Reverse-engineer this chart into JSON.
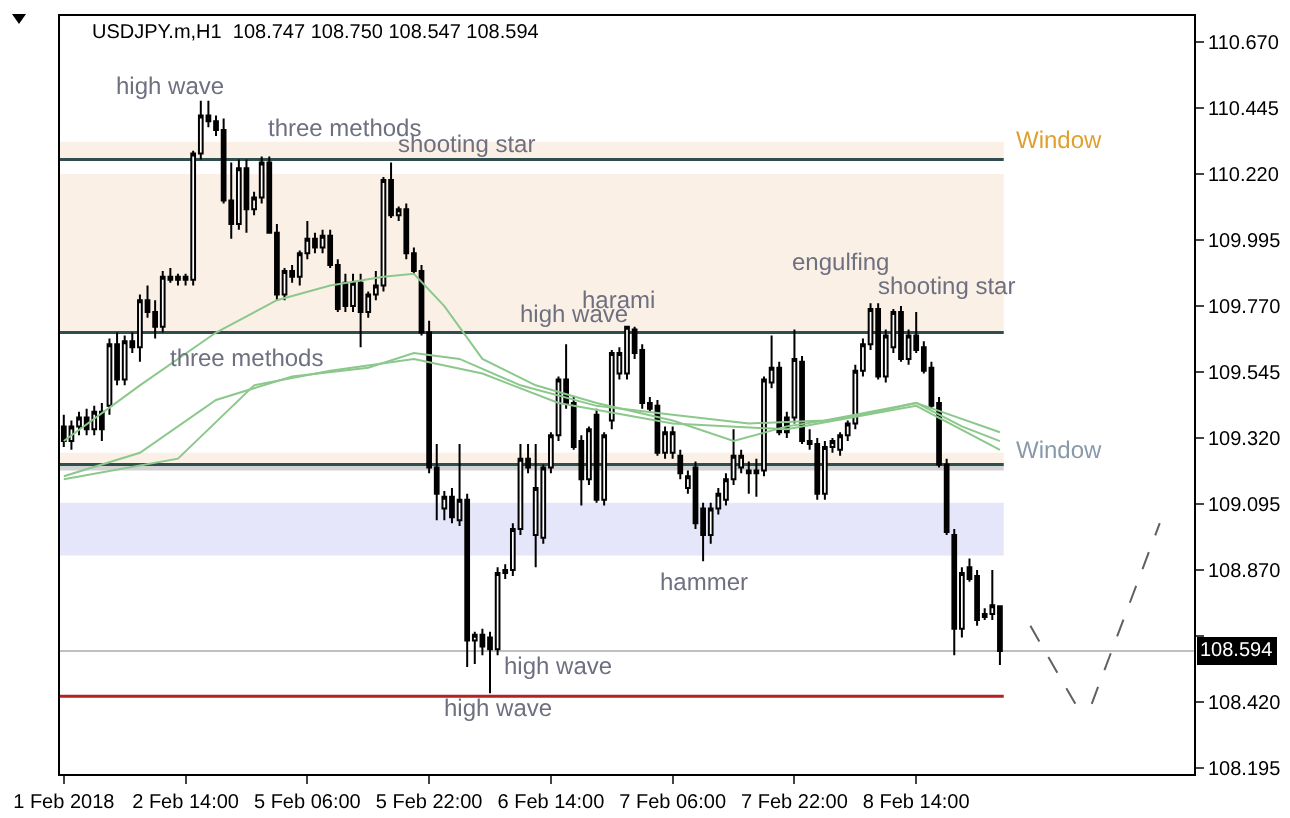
{
  "chart_data": {
    "type": "candlestick",
    "title": "USDJPY.m,H1  108.747 108.750 108.547 108.594",
    "categories": [
      "1 Feb 2018",
      null,
      null,
      null,
      null,
      null,
      null,
      null,
      null,
      null,
      null,
      null,
      null,
      null,
      null,
      null,
      "2 Feb 14:00",
      null,
      null,
      null,
      null,
      null,
      null,
      null,
      null,
      null,
      null,
      null,
      null,
      null,
      null,
      null,
      "5 Feb 06:00",
      null,
      null,
      null,
      null,
      null,
      null,
      null,
      null,
      null,
      null,
      null,
      null,
      null,
      null,
      null,
      "5 Feb 22:00",
      null,
      null,
      null,
      null,
      null,
      null,
      null,
      null,
      null,
      null,
      null,
      null,
      null,
      null,
      null,
      "6 Feb 14:00",
      null,
      null,
      null,
      null,
      null,
      null,
      null,
      null,
      null,
      null,
      null,
      null,
      null,
      null,
      null,
      "7 Feb 06:00",
      null,
      null,
      null,
      null,
      null,
      null,
      null,
      null,
      null,
      null,
      null,
      null,
      null,
      null,
      null,
      "7 Feb 22:00",
      null,
      null,
      null,
      null,
      null,
      null,
      null,
      null,
      null,
      null,
      null,
      null,
      null,
      null,
      null,
      "8 Feb 14:00",
      null,
      null,
      null,
      null,
      null,
      null,
      null,
      null,
      null,
      null,
      null,
      null,
      null,
      null,
      null,
      null,
      null,
      null,
      null,
      null,
      null,
      null,
      null,
      null,
      null,
      null,
      null,
      null,
      null,
      null,
      null,
      null,
      null,
      null,
      null,
      null
    ],
    "ohlc": [
      [
        109.36,
        109.4,
        109.29,
        109.31
      ],
      [
        109.31,
        109.38,
        109.28,
        109.36
      ],
      [
        109.36,
        109.41,
        109.33,
        109.39
      ],
      [
        109.39,
        109.42,
        109.33,
        109.35
      ],
      [
        109.35,
        109.43,
        109.33,
        109.41
      ],
      [
        109.41,
        109.44,
        109.31,
        109.35
      ],
      [
        109.43,
        109.66,
        109.4,
        109.64
      ],
      [
        109.64,
        109.68,
        109.5,
        109.52
      ],
      [
        109.52,
        109.67,
        109.5,
        109.65
      ],
      [
        109.65,
        109.68,
        109.61,
        109.63
      ],
      [
        109.63,
        109.81,
        109.58,
        109.79
      ],
      [
        109.79,
        109.84,
        109.73,
        109.75
      ],
      [
        109.75,
        109.79,
        109.66,
        109.7
      ],
      [
        109.7,
        109.89,
        109.68,
        109.87
      ],
      [
        109.87,
        109.9,
        109.85,
        109.86
      ],
      [
        109.86,
        109.88,
        109.84,
        109.87
      ],
      [
        109.87,
        109.88,
        109.84,
        109.86
      ],
      [
        109.86,
        110.3,
        109.84,
        110.29
      ],
      [
        110.29,
        110.47,
        110.27,
        110.42
      ],
      [
        110.42,
        110.47,
        110.38,
        110.4
      ],
      [
        110.4,
        110.42,
        110.35,
        110.37
      ],
      [
        110.37,
        110.41,
        110.12,
        110.13
      ],
      [
        110.13,
        110.26,
        110.0,
        110.05
      ],
      [
        110.05,
        110.27,
        110.03,
        110.24
      ],
      [
        110.24,
        110.27,
        110.02,
        110.1
      ],
      [
        110.1,
        110.16,
        110.08,
        110.14
      ],
      [
        110.14,
        110.28,
        110.12,
        110.26
      ],
      [
        110.26,
        110.28,
        110.02,
        110.02
      ],
      [
        110.02,
        110.05,
        109.79,
        109.81
      ],
      [
        109.81,
        109.9,
        109.79,
        109.89
      ],
      [
        109.89,
        109.91,
        109.85,
        109.87
      ],
      [
        109.87,
        109.96,
        109.84,
        109.95
      ],
      [
        109.95,
        110.06,
        109.93,
        110.0
      ],
      [
        110.0,
        110.02,
        109.95,
        109.97
      ],
      [
        109.97,
        110.03,
        109.95,
        110.01
      ],
      [
        110.01,
        110.03,
        109.9,
        109.91
      ],
      [
        109.91,
        109.93,
        109.75,
        109.76
      ],
      [
        109.85,
        109.88,
        109.75,
        109.77
      ],
      [
        109.77,
        109.88,
        109.75,
        109.85
      ],
      [
        109.85,
        109.88,
        109.63,
        109.75
      ],
      [
        109.75,
        109.82,
        109.73,
        109.81
      ],
      [
        109.81,
        109.89,
        109.79,
        109.84
      ],
      [
        109.84,
        110.21,
        109.82,
        110.2
      ],
      [
        110.2,
        110.26,
        110.07,
        110.08
      ],
      [
        110.08,
        110.11,
        110.06,
        110.1
      ],
      [
        110.1,
        110.12,
        109.93,
        109.95
      ],
      [
        109.95,
        109.97,
        109.88,
        109.89
      ],
      [
        109.89,
        109.91,
        109.67,
        109.68
      ],
      [
        109.68,
        109.72,
        109.2,
        109.22
      ],
      [
        109.22,
        109.3,
        109.04,
        109.13
      ],
      [
        109.08,
        109.14,
        109.04,
        109.12
      ],
      [
        109.12,
        109.15,
        109.03,
        109.05
      ],
      [
        109.04,
        109.3,
        109.02,
        109.11
      ],
      [
        109.11,
        109.13,
        108.54,
        108.63
      ],
      [
        108.63,
        108.66,
        108.55,
        108.65
      ],
      [
        108.65,
        108.67,
        108.58,
        108.61
      ],
      [
        108.64,
        108.66,
        108.45,
        108.6
      ],
      [
        108.6,
        108.88,
        108.58,
        108.86
      ],
      [
        108.86,
        108.89,
        108.84,
        108.87
      ],
      [
        108.87,
        109.03,
        108.85,
        109.01
      ],
      [
        109.01,
        109.3,
        108.99,
        109.25
      ],
      [
        109.25,
        109.3,
        109.2,
        109.22
      ],
      [
        108.99,
        109.3,
        108.88,
        109.15
      ],
      [
        108.98,
        109.23,
        108.96,
        109.22
      ],
      [
        109.22,
        109.34,
        109.2,
        109.33
      ],
      [
        109.33,
        109.53,
        109.31,
        109.52
      ],
      [
        109.52,
        109.64,
        109.42,
        109.44
      ],
      [
        109.44,
        109.46,
        109.28,
        109.29
      ],
      [
        109.31,
        109.33,
        109.09,
        109.18
      ],
      [
        109.18,
        109.36,
        109.16,
        109.35
      ],
      [
        109.4,
        109.42,
        109.1,
        109.11
      ],
      [
        109.11,
        109.34,
        109.09,
        109.33
      ],
      [
        109.38,
        109.62,
        109.35,
        109.61
      ],
      [
        109.54,
        109.63,
        109.52,
        109.61
      ],
      [
        109.54,
        109.7,
        109.52,
        109.7
      ],
      [
        109.69,
        109.7,
        109.59,
        109.61
      ],
      [
        109.62,
        109.64,
        109.42,
        109.44
      ],
      [
        109.44,
        109.46,
        109.41,
        109.42
      ],
      [
        109.43,
        109.45,
        109.26,
        109.27
      ],
      [
        109.27,
        109.36,
        109.25,
        109.34
      ],
      [
        109.27,
        109.36,
        109.25,
        109.34
      ],
      [
        109.26,
        109.28,
        109.18,
        109.2
      ],
      [
        109.15,
        109.21,
        109.13,
        109.19
      ],
      [
        109.22,
        109.24,
        109.01,
        109.03
      ],
      [
        109.08,
        109.1,
        108.9,
        108.99
      ],
      [
        108.99,
        109.1,
        108.96,
        109.08
      ],
      [
        109.08,
        109.15,
        109.06,
        109.13
      ],
      [
        109.11,
        109.2,
        109.09,
        109.18
      ],
      [
        109.18,
        109.35,
        109.16,
        109.26
      ],
      [
        109.22,
        109.28,
        109.2,
        109.26
      ],
      [
        109.21,
        109.24,
        109.13,
        109.2
      ],
      [
        109.21,
        109.25,
        109.12,
        109.2
      ],
      [
        109.21,
        109.53,
        109.19,
        109.52
      ],
      [
        109.51,
        109.67,
        109.49,
        109.56
      ],
      [
        109.56,
        109.58,
        109.33,
        109.34
      ],
      [
        109.39,
        109.41,
        109.32,
        109.34
      ],
      [
        109.39,
        109.69,
        109.37,
        109.59
      ],
      [
        109.58,
        109.6,
        109.3,
        109.31
      ],
      [
        109.31,
        109.35,
        109.28,
        109.3
      ],
      [
        109.3,
        109.32,
        109.11,
        109.13
      ],
      [
        109.13,
        109.31,
        109.11,
        109.29
      ],
      [
        109.29,
        109.32,
        109.27,
        109.31
      ],
      [
        109.28,
        109.34,
        109.26,
        109.33
      ],
      [
        109.33,
        109.38,
        109.31,
        109.37
      ],
      [
        109.37,
        109.57,
        109.35,
        109.55
      ],
      [
        109.55,
        109.66,
        109.53,
        109.64
      ],
      [
        109.64,
        109.78,
        109.62,
        109.76
      ],
      [
        109.76,
        109.78,
        109.52,
        109.53
      ],
      [
        109.53,
        109.69,
        109.51,
        109.67
      ],
      [
        109.63,
        109.76,
        109.61,
        109.75
      ],
      [
        109.75,
        109.77,
        109.58,
        109.59
      ],
      [
        109.59,
        109.69,
        109.57,
        109.67
      ],
      [
        109.67,
        109.75,
        109.61,
        109.62
      ],
      [
        109.63,
        109.65,
        109.54,
        109.55
      ],
      [
        109.56,
        109.58,
        109.42,
        109.43
      ],
      [
        109.44,
        109.46,
        109.22,
        109.23
      ],
      [
        109.23,
        109.25,
        108.99,
        109.0
      ],
      [
        108.99,
        109.01,
        108.58,
        108.67
      ],
      [
        108.67,
        108.88,
        108.64,
        108.86
      ],
      [
        108.88,
        108.91,
        108.83,
        108.84
      ],
      [
        108.85,
        108.87,
        108.68,
        108.7
      ],
      [
        108.71,
        108.74,
        108.7,
        108.72
      ],
      [
        108.72,
        108.87,
        108.7,
        108.75
      ],
      [
        108.747,
        108.75,
        108.547,
        108.594
      ],
      null,
      null,
      null,
      null,
      null,
      null,
      null,
      null,
      null,
      null,
      null,
      null,
      null,
      null,
      null,
      null,
      null,
      null,
      null,
      null,
      null,
      null,
      null,
      null,
      null
    ],
    "series": [
      {
        "type": "line",
        "color": "#8cc88c",
        "values": [
          109.31,
          null,
          null,
          null,
          null,
          null,
          null,
          null,
          null,
          null,
          109.5,
          null,
          null,
          null,
          null,
          null,
          null,
          null,
          null,
          null,
          109.68,
          null,
          null,
          null,
          null,
          null,
          null,
          null,
          109.79,
          null,
          null,
          null,
          null,
          null,
          null,
          109.84,
          null,
          null,
          null,
          null,
          null,
          null,
          109.87,
          null,
          null,
          null,
          109.88,
          null,
          null,
          null,
          109.77,
          null,
          null,
          null,
          null,
          109.59,
          null,
          null,
          null,
          null,
          null,
          null,
          109.5,
          null,
          null,
          null,
          null,
          null,
          null,
          null,
          109.44,
          null,
          null,
          null,
          null,
          null,
          null,
          null,
          null,
          null,
          109.38,
          null,
          null,
          null,
          null,
          null,
          null,
          null,
          109.31,
          null,
          null,
          null,
          null,
          null,
          null,
          109.36,
          null,
          null,
          null,
          null,
          null,
          null,
          null,
          null,
          null,
          109.4,
          null,
          null,
          null,
          null,
          null,
          null,
          109.44,
          null,
          null,
          null,
          null,
          null,
          109.36,
          null,
          null,
          null,
          null,
          109.31,
          null,
          null,
          null,
          null,
          null,
          null,
          null,
          null,
          null,
          null,
          null,
          null,
          null,
          null,
          null,
          null,
          null,
          null,
          null,
          null,
          null,
          null,
          null,
          null,
          null
        ]
      },
      {
        "type": "line",
        "color": "#8cc88c",
        "values": [
          109.19,
          null,
          null,
          null,
          null,
          null,
          null,
          null,
          null,
          null,
          109.27,
          null,
          null,
          null,
          null,
          null,
          null,
          null,
          null,
          null,
          109.45,
          null,
          null,
          null,
          null,
          null,
          null,
          null,
          null,
          null,
          109.53,
          null,
          null,
          null,
          null,
          null,
          null,
          null,
          null,
          null,
          109.56,
          null,
          null,
          null,
          null,
          null,
          109.61,
          null,
          null,
          null,
          null,
          null,
          109.59,
          null,
          null,
          null,
          null,
          null,
          null,
          null,
          109.5,
          null,
          null,
          null,
          null,
          null,
          null,
          null,
          null,
          null,
          109.43,
          null,
          null,
          null,
          null,
          null,
          null,
          null,
          null,
          null,
          109.4,
          null,
          null,
          null,
          null,
          null,
          null,
          null,
          null,
          null,
          109.37,
          null,
          null,
          null,
          null,
          null,
          null,
          null,
          null,
          null,
          109.38,
          null,
          null,
          null,
          null,
          null,
          null,
          null,
          null,
          null,
          null,
          null,
          109.44,
          null,
          null,
          null,
          null,
          null,
          null,
          null,
          null,
          null,
          null,
          109.34,
          null,
          null,
          null,
          null,
          null,
          null,
          null,
          null,
          null,
          null,
          null,
          null,
          null,
          null,
          null,
          null,
          null,
          null,
          null,
          null,
          null,
          null,
          null,
          null,
          null
        ]
      },
      {
        "type": "line",
        "color": "#8cc88c",
        "values": [
          109.18,
          null,
          null,
          null,
          null,
          null,
          null,
          null,
          null,
          null,
          null,
          null,
          null,
          null,
          null,
          109.25,
          null,
          null,
          null,
          null,
          null,
          null,
          null,
          null,
          null,
          109.5,
          null,
          null,
          null,
          null,
          null,
          null,
          null,
          null,
          null,
          109.55,
          null,
          null,
          null,
          null,
          null,
          null,
          null,
          null,
          null,
          null,
          109.59,
          null,
          null,
          null,
          null,
          null,
          null,
          null,
          null,
          109.54,
          null,
          null,
          null,
          null,
          null,
          null,
          null,
          null,
          null,
          109.44,
          null,
          null,
          null,
          null,
          null,
          null,
          null,
          null,
          null,
          null,
          null,
          null,
          null,
          null,
          109.37,
          null,
          null,
          null,
          null,
          null,
          null,
          null,
          null,
          null,
          null,
          null,
          null,
          null,
          null,
          109.35,
          null,
          null,
          null,
          null,
          null,
          null,
          null,
          null,
          null,
          null,
          null,
          null,
          null,
          null,
          null,
          null,
          109.43,
          null,
          null,
          null,
          null,
          null,
          null,
          null,
          null,
          null,
          null,
          109.28,
          null,
          null,
          null,
          null,
          null,
          null,
          null,
          null,
          null,
          null,
          null,
          null,
          null,
          null,
          null,
          null,
          null,
          null,
          null,
          null,
          null,
          null,
          null,
          null,
          null
        ]
      },
      {
        "type": "line",
        "color": "#606060",
        "line_style": "dashed",
        "values": [
          null,
          null,
          null,
          null,
          null,
          null,
          null,
          null,
          null,
          null,
          null,
          null,
          null,
          null,
          null,
          null,
          null,
          null,
          null,
          null,
          null,
          null,
          null,
          null,
          null,
          null,
          null,
          null,
          null,
          null,
          null,
          null,
          null,
          null,
          null,
          null,
          null,
          null,
          null,
          null,
          null,
          null,
          null,
          null,
          null,
          null,
          null,
          null,
          null,
          null,
          null,
          null,
          null,
          null,
          null,
          null,
          null,
          null,
          null,
          null,
          null,
          null,
          null,
          null,
          null,
          null,
          null,
          null,
          null,
          null,
          null,
          null,
          null,
          null,
          null,
          null,
          null,
          null,
          null,
          null,
          null,
          null,
          null,
          null,
          null,
          null,
          null,
          null,
          null,
          null,
          null,
          null,
          null,
          null,
          null,
          null,
          null,
          null,
          null,
          null,
          null,
          null,
          null,
          null,
          null,
          null,
          null,
          null,
          null,
          null,
          null,
          null,
          null,
          null,
          null,
          null,
          null,
          null,
          null,
          null,
          null,
          null,
          null,
          null,
          null,
          null,
          null,
          108.68,
          null,
          null,
          null,
          null,
          null,
          108.41,
          null,
          108.41,
          null,
          null,
          null,
          null,
          null,
          null,
          null,
          null,
          109.03,
          null,
          null,
          null,
          null
        ]
      }
    ],
    "bands": [
      {
        "axis": "y",
        "from": 110.27,
        "to": 110.33,
        "color": "#faf0e6",
        "label": "Window"
      },
      {
        "axis": "y",
        "from": 109.68,
        "to": 110.22,
        "color": "#faf0e6"
      },
      {
        "axis": "y",
        "from": 109.23,
        "to": 109.27,
        "color": "#faf0e6",
        "label": "Window"
      },
      {
        "axis": "y",
        "from": 109.21,
        "to": 109.23,
        "color": "#d3d3d3"
      },
      {
        "axis": "y",
        "from": 108.92,
        "to": 109.1,
        "color": "#e6e6fa"
      }
    ],
    "ref_lines": [
      {
        "axis": "y",
        "value": 110.27,
        "color": "#2f4f4f"
      },
      {
        "axis": "y",
        "value": 109.68,
        "color": "#2f4f4f"
      },
      {
        "axis": "y",
        "value": 109.23,
        "color": "#2f4f4f"
      },
      {
        "axis": "y",
        "value": 108.594,
        "color": "#c0c0c0",
        "label": "108.594"
      },
      {
        "axis": "y",
        "value": 108.44,
        "color": "#b22222"
      }
    ],
    "annotations": [
      "high wave",
      "three methods",
      "shooting star",
      "three methods",
      "high wave",
      "harami",
      "engulfing",
      "shooting star",
      "hammer",
      "high wave",
      "high wave"
    ],
    "ylim": [
      108.175,
      110.759
    ],
    "yticks": [
      {
        "value": 110.67,
        "label": "110.670"
      },
      {
        "value": 110.445,
        "label": "110.445"
      },
      {
        "value": 110.22,
        "label": "110.220"
      },
      {
        "value": 109.995,
        "label": "109.995"
      },
      {
        "value": 109.77,
        "label": "109.770"
      },
      {
        "value": 109.545,
        "label": "109.545"
      },
      {
        "value": 109.32,
        "label": "109.320"
      },
      {
        "value": 109.095,
        "label": "109.095"
      },
      {
        "value": 108.87,
        "label": "108.870"
      },
      {
        "value": 108.645,
        "label": null
      },
      {
        "value": 108.42,
        "label": "108.420"
      },
      {
        "value": 108.195,
        "label": "108.195"
      }
    ],
    "grid": false
  }
}
